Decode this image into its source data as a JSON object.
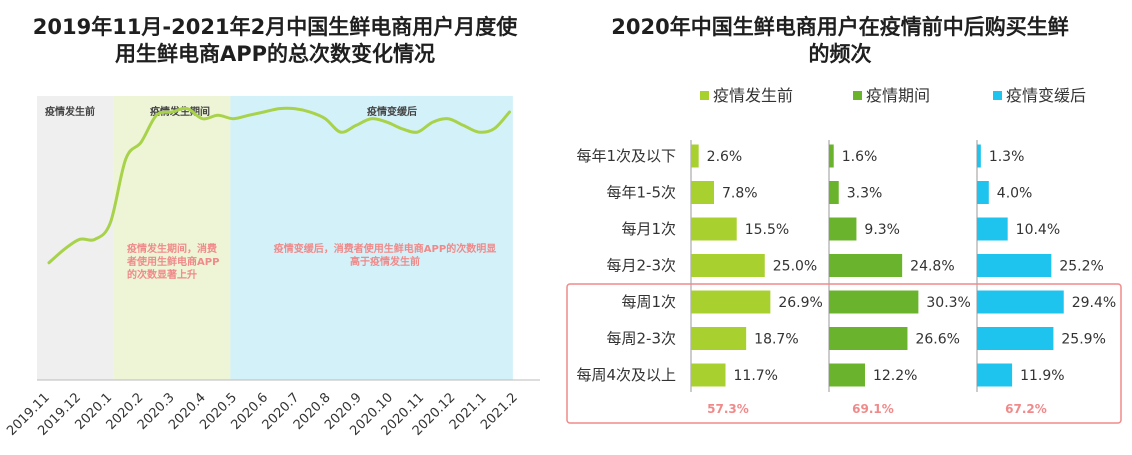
{
  "left_chart": {
    "title": "2019年11月-2021年2月中国生鲜电商用户月度使用生鲜电商APP的总次数变化情况",
    "title_lines": [
      "2019年11月-2021年2月中国生鲜电商用户月度使",
      "用生鲜电商APP的总次数变化情况"
    ],
    "phase_labels": [
      "疫情发生前",
      "疫情发生期间",
      "疫情变缓后"
    ],
    "phase_colors": [
      "#efefef",
      "#eef5d6",
      "#d3f1f9"
    ],
    "annotation_during": [
      "疫情发生期间，消费",
      "者使用生鲜电商APP",
      "的次数显著上升"
    ],
    "annotation_after": [
      "疫情变缓后，消费者使用生鲜电商APP的次数明显",
      "高于疫情发生前"
    ],
    "annotation_color": "#f08a8a",
    "line_color": "#a8d24a"
  },
  "right_chart": {
    "title": "2020年中国生鲜电商用户在疫情前中后购买生鲜的频次",
    "title_lines": [
      "2020年中国生鲜电商用户在疫情前中后购买生鲜",
      "的频次"
    ],
    "totals": [
      "57.3%",
      "69.1%",
      "67.2%"
    ],
    "highlight_color": "#f08a8a"
  },
  "chart_data": [
    {
      "type": "line",
      "title": "2019年11月-2021年2月中国生鲜电商用户月度使用生鲜电商APP的总次数变化情况",
      "categories": [
        "2019.11",
        "2019.12",
        "2020.1",
        "2020.2",
        "2020.3",
        "2020.4",
        "2020.5",
        "2020.6",
        "2020.7",
        "2020.8",
        "2020.9",
        "2020.10",
        "2020.11",
        "2020.12",
        "2021.1",
        "2021.2"
      ],
      "x": [
        0,
        0.5,
        1,
        1.5,
        2,
        2.5,
        3,
        3.5,
        4,
        4.5,
        5,
        5.5,
        6,
        6.5,
        7,
        7.5,
        8,
        8.5,
        9,
        9.5,
        10,
        10.5,
        11,
        11.5,
        12,
        12.5,
        13,
        13.5,
        14,
        14.5,
        15
      ],
      "values": [
        35,
        39,
        42,
        42,
        47,
        66,
        71,
        79,
        80,
        81,
        78,
        79,
        78,
        79,
        80,
        81,
        81,
        80,
        78,
        74,
        76,
        78,
        77,
        75,
        74,
        77,
        78,
        76,
        74,
        75,
        80
      ],
      "ylim": [
        0,
        100
      ],
      "xlabel": "",
      "ylabel": "",
      "phases": [
        {
          "label": "疫情发生前",
          "x_range": [
            0,
            2.5
          ]
        },
        {
          "label": "疫情发生期间",
          "x_range": [
            2.5,
            6.3
          ]
        },
        {
          "label": "疫情变缓后",
          "x_range": [
            6.3,
            15.5
          ]
        }
      ]
    },
    {
      "type": "bar",
      "orientation": "horizontal",
      "title": "2020年中国生鲜电商用户在疫情前中后购买生鲜的频次",
      "categories": [
        "每年1次及以下",
        "每年1-5次",
        "每月1次",
        "每月2-3次",
        "每周1次",
        "每周2-3次",
        "每周4次及以上"
      ],
      "series": [
        {
          "name": "疫情发生前",
          "color": "#a8d12f",
          "values": [
            2.6,
            7.8,
            15.5,
            25.0,
            26.9,
            18.7,
            11.7
          ],
          "labels": [
            "2.6%",
            "7.8%",
            "15.5%",
            "25.0%",
            "26.9%",
            "18.7%",
            "11.7%"
          ]
        },
        {
          "name": "疫情期间",
          "color": "#6ab42d",
          "values": [
            1.6,
            3.3,
            9.3,
            24.8,
            30.3,
            26.6,
            12.2
          ],
          "labels": [
            "1.6%",
            "3.3%",
            "9.3%",
            "24.8%",
            "30.3%",
            "26.6%",
            "12.2%"
          ]
        },
        {
          "name": "疫情变缓后",
          "color": "#1ec3ee",
          "values": [
            1.3,
            4.0,
            10.4,
            25.2,
            29.4,
            25.9,
            11.9
          ],
          "labels": [
            "1.3%",
            "4.0%",
            "10.4%",
            "25.2%",
            "29.4%",
            "25.9%",
            "11.9%"
          ]
        }
      ],
      "unit": "%",
      "highlighted_categories": [
        "每周1次",
        "每周2-3次",
        "每周4次及以上"
      ],
      "highlight_totals": [
        "57.3%",
        "69.1%",
        "67.2%"
      ]
    }
  ]
}
